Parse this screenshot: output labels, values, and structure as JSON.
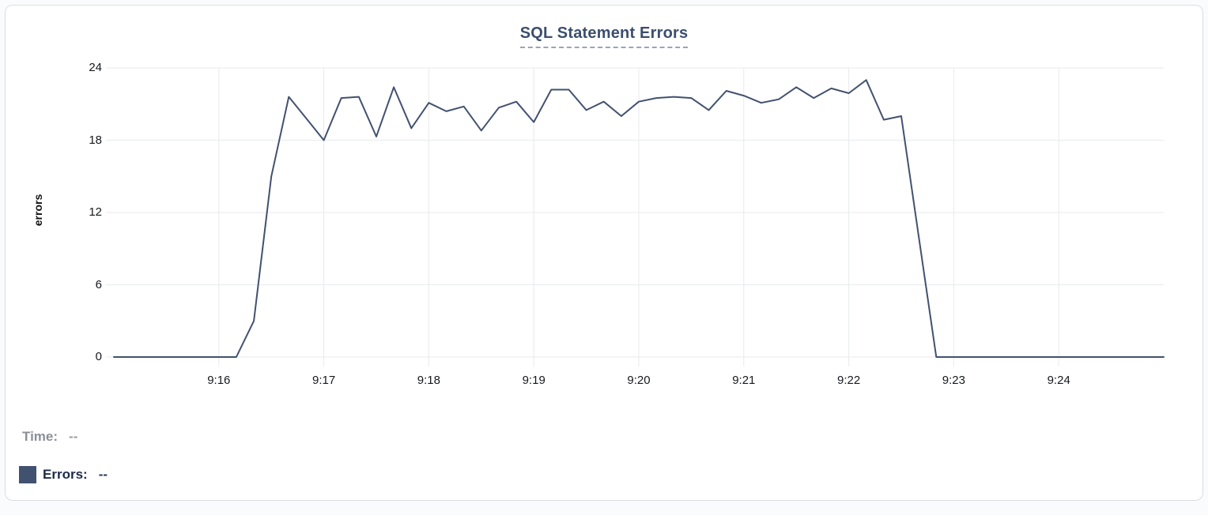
{
  "page": {
    "background": "#fafbfc"
  },
  "card": {
    "background": "#ffffff",
    "border_color": "#dbdde1"
  },
  "header": {
    "title": "SQL Statement Errors",
    "title_color": "#3c4e6e",
    "underline_color": "#9aa3ba"
  },
  "chart_data": {
    "type": "line",
    "title": "SQL Statement Errors",
    "xlabel": "",
    "ylabel": "errors",
    "ylim": [
      0,
      24
    ],
    "y_ticks": [
      0,
      6,
      12,
      18,
      24
    ],
    "x_ticks": [
      "9:16",
      "9:17",
      "9:18",
      "9:19",
      "9:20",
      "9:21",
      "9:22",
      "9:23",
      "9:24"
    ],
    "x_range": [
      "9:15:00",
      "9:25:00"
    ],
    "grid": true,
    "legend_position": "bottom-left",
    "line_color": "#42516f",
    "grid_color": "#e9eaec",
    "series": [
      {
        "name": "Errors",
        "points": [
          [
            "9:15:00",
            0
          ],
          [
            "9:15:10",
            0
          ],
          [
            "9:15:20",
            0
          ],
          [
            "9:15:30",
            0
          ],
          [
            "9:15:40",
            0
          ],
          [
            "9:15:50",
            0
          ],
          [
            "9:16:00",
            0
          ],
          [
            "9:16:10",
            0
          ],
          [
            "9:16:20",
            3
          ],
          [
            "9:16:30",
            15
          ],
          [
            "9:16:40",
            21.6
          ],
          [
            "9:16:50",
            19.8
          ],
          [
            "9:17:00",
            18
          ],
          [
            "9:17:10",
            21.5
          ],
          [
            "9:17:20",
            21.6
          ],
          [
            "9:17:30",
            18.3
          ],
          [
            "9:17:40",
            22.4
          ],
          [
            "9:17:50",
            19
          ],
          [
            "9:18:00",
            21.1
          ],
          [
            "9:18:10",
            20.4
          ],
          [
            "9:18:20",
            20.8
          ],
          [
            "9:18:30",
            18.8
          ],
          [
            "9:18:40",
            20.7
          ],
          [
            "9:18:50",
            21.2
          ],
          [
            "9:19:00",
            19.5
          ],
          [
            "9:19:10",
            22.2
          ],
          [
            "9:19:20",
            22.2
          ],
          [
            "9:19:30",
            20.5
          ],
          [
            "9:19:40",
            21.2
          ],
          [
            "9:19:50",
            20
          ],
          [
            "9:20:00",
            21.2
          ],
          [
            "9:20:10",
            21.5
          ],
          [
            "9:20:20",
            21.6
          ],
          [
            "9:20:30",
            21.5
          ],
          [
            "9:20:40",
            20.5
          ],
          [
            "9:20:50",
            22.1
          ],
          [
            "9:21:00",
            21.7
          ],
          [
            "9:21:10",
            21.1
          ],
          [
            "9:21:20",
            21.4
          ],
          [
            "9:21:30",
            22.4
          ],
          [
            "9:21:40",
            21.5
          ],
          [
            "9:21:50",
            22.3
          ],
          [
            "9:22:00",
            21.9
          ],
          [
            "9:22:10",
            23
          ],
          [
            "9:22:20",
            19.7
          ],
          [
            "9:22:30",
            20
          ],
          [
            "9:22:40",
            10
          ],
          [
            "9:22:50",
            0
          ],
          [
            "9:23:00",
            0
          ],
          [
            "9:23:10",
            0
          ],
          [
            "9:23:20",
            0
          ],
          [
            "9:23:30",
            0
          ],
          [
            "9:23:40",
            0
          ],
          [
            "9:23:50",
            0
          ],
          [
            "9:24:00",
            0
          ],
          [
            "9:24:10",
            0
          ],
          [
            "9:24:20",
            0
          ],
          [
            "9:24:30",
            0
          ],
          [
            "9:24:40",
            0
          ],
          [
            "9:24:50",
            0
          ],
          [
            "9:25:00",
            0
          ]
        ]
      }
    ]
  },
  "legend": {
    "time_label": "Time:",
    "time_value": "--",
    "errors_label": "Errors:",
    "errors_value": "--",
    "swatch_color": "#415270"
  }
}
